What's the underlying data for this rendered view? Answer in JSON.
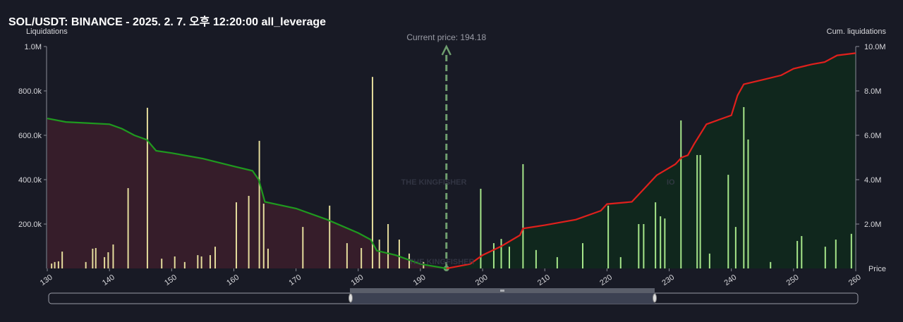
{
  "chart_data": {
    "type": "liquidation-map",
    "title": "SOL/USDT: BINANCE - 2025. 2. 7. 오후 12:20:00 all_leverage",
    "y_label": "Liquidations",
    "y2_label": "Cum. liquidations",
    "x_label": "Price",
    "watermark": "THE KINGFISHER",
    "watermark_suffix": "IO",
    "annotation": {
      "text": "Current price: 194.18",
      "x": 194.18,
      "color": "#6f9e6f"
    },
    "xlim": [
      130,
      260
    ],
    "xticks": [
      130,
      140,
      150,
      160,
      170,
      180,
      190,
      200,
      210,
      220,
      230,
      240,
      250,
      260
    ],
    "ylim": [
      0,
      1000000
    ],
    "yticks": [
      {
        "value": 200000,
        "label": "200.0k"
      },
      {
        "value": 400000,
        "label": "400.0k"
      },
      {
        "value": 600000,
        "label": "600.0k"
      },
      {
        "value": 800000,
        "label": "800.0k"
      },
      {
        "value": 1000000,
        "label": "1.0M"
      }
    ],
    "y2lim": [
      0,
      10000000
    ],
    "y2ticks": [
      {
        "value": 2000000,
        "label": "2.0M"
      },
      {
        "value": 4000000,
        "label": "4.0M"
      },
      {
        "value": 6000000,
        "label": "6.0M"
      },
      {
        "value": 8000000,
        "label": "8.0M"
      },
      {
        "value": 10000000,
        "label": "10.0M"
      }
    ],
    "grid": false,
    "series": [
      {
        "type": "bar",
        "color": "#e4dc9c",
        "x": [
          130.7,
          131.2,
          131.8,
          132.4,
          136.2,
          137.3,
          137.8,
          139.2,
          139.8,
          140.6,
          143.0,
          146.1,
          148.4,
          150.5,
          152.1,
          154.2,
          154.8,
          156.2,
          157.0,
          160.4,
          162.4,
          164.1,
          164.8,
          165.5,
          171.1,
          175.4,
          178.2,
          180.5,
          182.3,
          183.4,
          184.8,
          186.6,
          188.2,
          190.5
        ],
        "values": [
          22000,
          29000,
          32000,
          76000,
          29000,
          89000,
          92000,
          51000,
          73000,
          108000,
          362000,
          724000,
          44000,
          54000,
          29000,
          60000,
          54000,
          60000,
          98000,
          298000,
          327000,
          575000,
          292000,
          89000,
          187000,
          283000,
          114000,
          92000,
          863000,
          130000,
          200000,
          130000,
          67000,
          29000
        ]
      },
      {
        "type": "bar",
        "color": "#a6e68a",
        "x": [
          199.7,
          201.8,
          203.0,
          204.3,
          206.5,
          208.6,
          212.0,
          216.1,
          220.2,
          222.2,
          225.1,
          225.9,
          227.8,
          228.6,
          229.3,
          231.9,
          234.5,
          235.0,
          236.5,
          239.5,
          240.7,
          242.0,
          242.7,
          246.3,
          250.6,
          251.3,
          255.1,
          256.8,
          259.3
        ],
        "values": [
          359000,
          114000,
          133000,
          98000,
          470000,
          83000,
          51000,
          114000,
          283000,
          51000,
          200000,
          200000,
          298000,
          235000,
          225000,
          667000,
          511000,
          511000,
          67000,
          422000,
          187000,
          727000,
          581000,
          29000,
          124000,
          146000,
          98000,
          130000,
          156000
        ]
      },
      {
        "type": "line",
        "axis": "y2",
        "color": "#1f9a1f",
        "area_color": "#3a1e2b",
        "x": [
          130,
          133,
          140,
          142,
          144,
          146,
          147.5,
          150,
          155,
          160,
          163,
          164,
          165,
          170,
          175,
          180,
          182,
          183,
          186,
          190,
          194.18
        ],
        "values": [
          6760000,
          6600000,
          6500000,
          6300000,
          6000000,
          5800000,
          5300000,
          5200000,
          4950000,
          4600000,
          4400000,
          4000000,
          3000000,
          2700000,
          2200000,
          1600000,
          1300000,
          800000,
          600000,
          200000,
          0
        ]
      },
      {
        "type": "line",
        "axis": "y2",
        "color": "#e0201c",
        "area_color": "#10291d",
        "x": [
          194.18,
          198,
          200,
          203,
          206,
          206.5,
          210,
          215,
          219,
          220,
          224,
          226,
          228,
          231,
          232,
          233,
          234,
          236,
          238,
          240,
          241,
          242,
          245,
          248,
          250,
          253,
          255,
          257,
          260
        ],
        "values": [
          0,
          200000,
          600000,
          1000000,
          1500000,
          1800000,
          1950000,
          2200000,
          2600000,
          2900000,
          3000000,
          3600000,
          4200000,
          4700000,
          5000000,
          5100000,
          5600000,
          6500000,
          6700000,
          6900000,
          7800000,
          8300000,
          8500000,
          8700000,
          9000000,
          9200000,
          9300000,
          9600000,
          9700000
        ]
      }
    ]
  }
}
